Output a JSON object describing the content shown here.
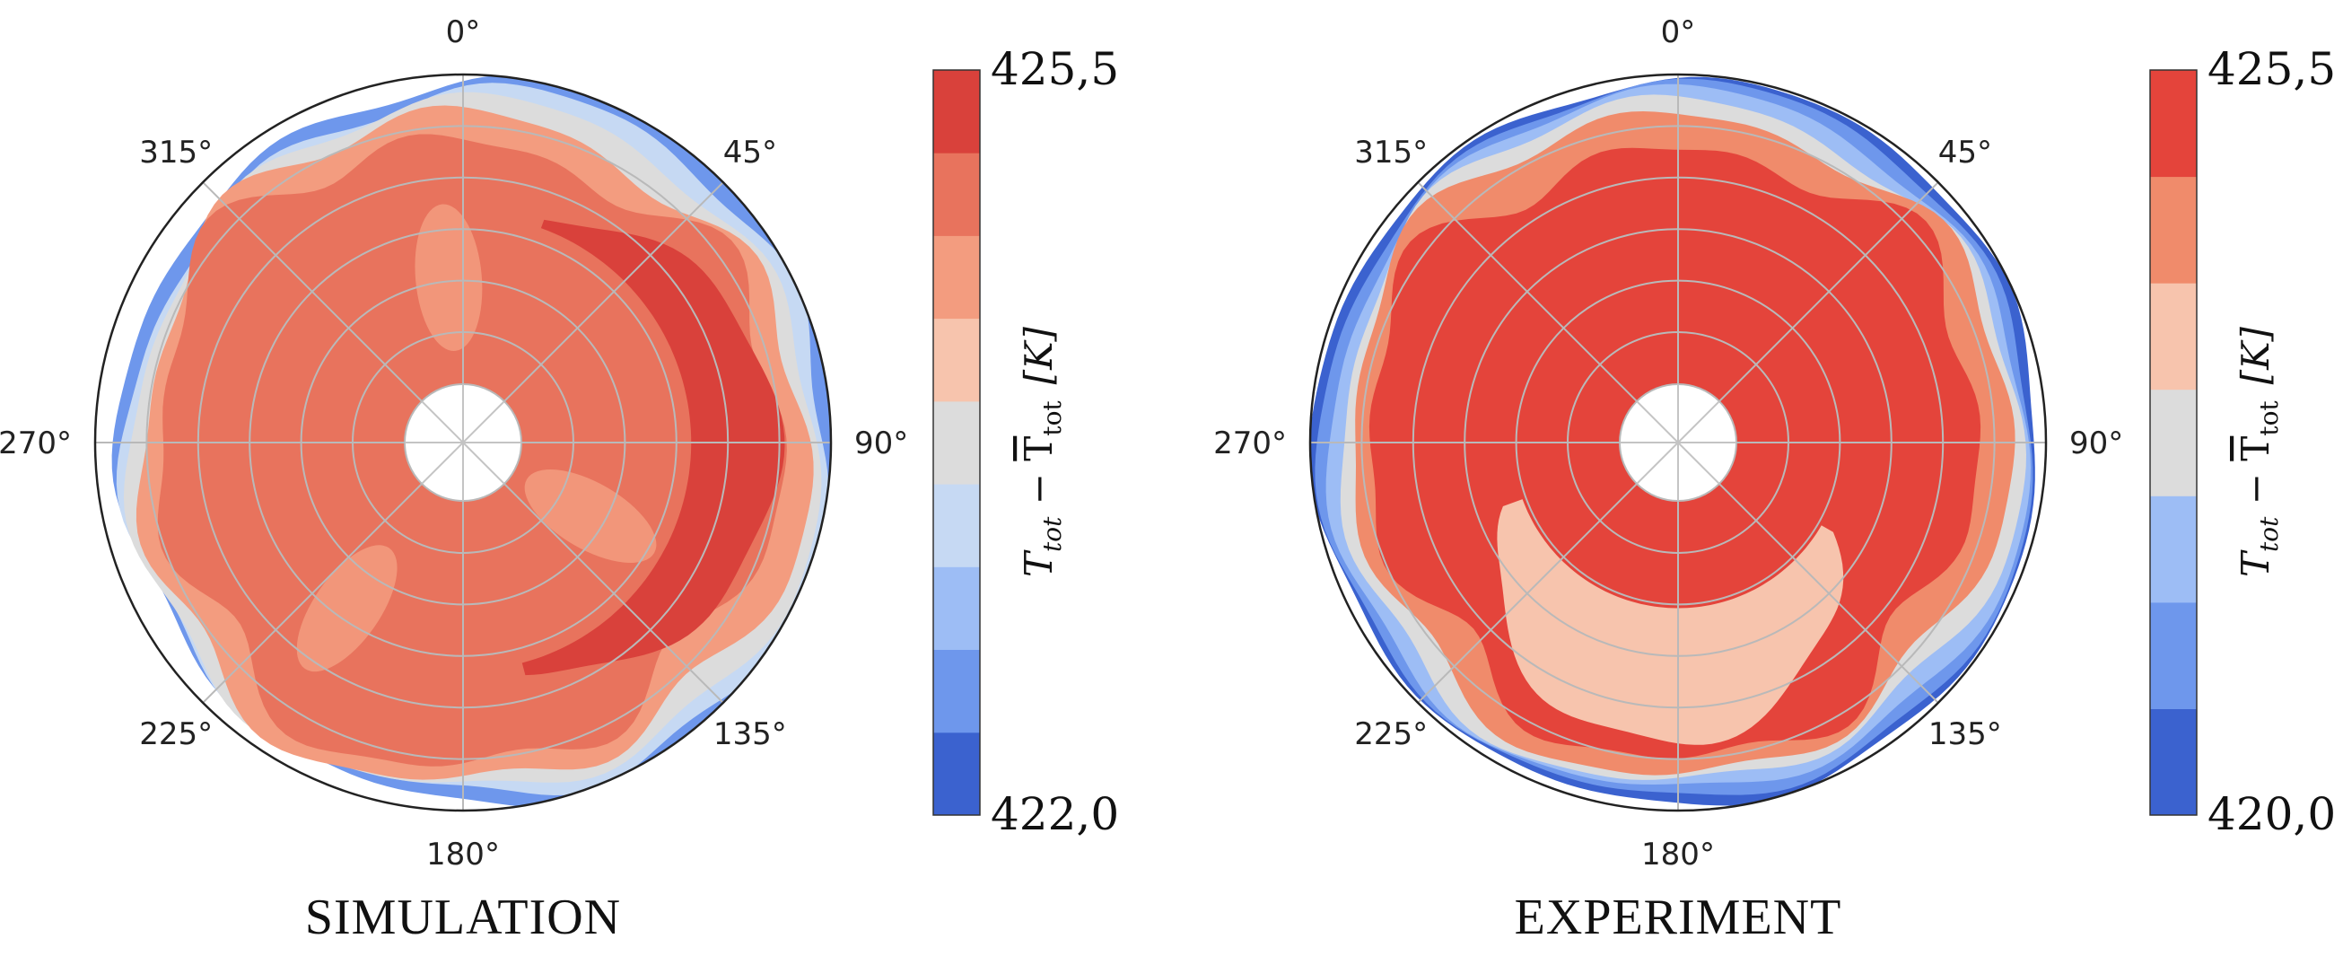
{
  "chart_data": [
    {
      "type": "polar-contour",
      "caption": "SIMULATION",
      "angular_tick_labels": [
        "0°",
        "45°",
        "90°",
        "135°",
        "180°",
        "225°",
        "270°",
        "315°"
      ],
      "colorbar": {
        "min_label": "422,0",
        "max_label": "425,5",
        "min": 422.0,
        "max": 425.5,
        "levels": 8,
        "label_main": "T",
        "label_main_sub": "tot",
        "label_minus": " − ",
        "label_mean": "T",
        "label_mean_sub": "tot",
        "label_unit": "[K]",
        "colors": [
          "#3b62cf",
          "#6e97ec",
          "#9dbdf5",
          "#c6d9f3",
          "#dcdcdc",
          "#f7c4ad",
          "#f39c7f",
          "#e8735d",
          "#d9413b"
        ]
      },
      "levels": [
        {
          "level": 1,
          "r0": 1.0,
          "r1": 0.1,
          "amp": 0.015,
          "phase": 0.0
        },
        {
          "level": 3,
          "r0": 0.97,
          "r1": 0.08,
          "amp": 0.02,
          "phase": 0.3
        },
        {
          "level": 4,
          "r0": 0.95,
          "r1": 0.06,
          "amp": 0.02,
          "phase": 0.7
        },
        {
          "level": 6,
          "r0": 0.92,
          "r1": 0.06,
          "amp": 0.03,
          "phase": 1.1
        },
        {
          "level": 7,
          "r0": 0.86,
          "r1": 0.05,
          "amp": 0.04,
          "phase": 1.5
        }
      ],
      "hot_spot": {
        "level": 8,
        "theta_start": 20,
        "theta_end": 165
      },
      "light_patches": [
        {
          "level": 5,
          "theta": 215,
          "r": 0.55
        },
        {
          "level": 5,
          "theta": 355,
          "r": 0.45
        },
        {
          "level": 5,
          "theta": 120,
          "r": 0.4
        }
      ]
    },
    {
      "type": "polar-contour",
      "caption": "EXPERIMENT",
      "angular_tick_labels": [
        "0°",
        "45°",
        "90°",
        "135°",
        "180°",
        "225°",
        "270°",
        "315°"
      ],
      "colorbar": {
        "min_label": "420,0",
        "max_label": "425,5",
        "min": 420.0,
        "max": 425.5,
        "levels": 7,
        "label_main": "T",
        "label_main_sub": "tot",
        "label_minus": " − ",
        "label_mean": "T",
        "label_mean_sub": "tot",
        "label_unit": "[K]",
        "colors": [
          "#3b62cf",
          "#6e97ec",
          "#9dbdf5",
          "#dcdcdc",
          "#f7c4ad",
          "#f08b6b",
          "#e4443b"
        ]
      },
      "levels": [
        {
          "level": 0,
          "r0": 1.0,
          "r1": 0.0,
          "amp": 0.01,
          "phase": 0.0
        },
        {
          "level": 1,
          "r0": 0.985,
          "r1": 0.0,
          "amp": 0.012,
          "phase": 0.4
        },
        {
          "level": 2,
          "r0": 0.965,
          "r1": 0.0,
          "amp": 0.015,
          "phase": 0.8
        },
        {
          "level": 3,
          "r0": 0.94,
          "r1": 0.0,
          "amp": 0.02,
          "phase": 1.2
        },
        {
          "level": 5,
          "r0": 0.91,
          "r1": 0.0,
          "amp": 0.025,
          "phase": 1.6
        },
        {
          "level": 6,
          "r0": 0.84,
          "r1": 0.04,
          "amp": 0.04,
          "phase": 2.0
        }
      ],
      "bottom_lobe": {
        "level": 4,
        "theta_start": 120,
        "theta_end": 250
      }
    }
  ]
}
